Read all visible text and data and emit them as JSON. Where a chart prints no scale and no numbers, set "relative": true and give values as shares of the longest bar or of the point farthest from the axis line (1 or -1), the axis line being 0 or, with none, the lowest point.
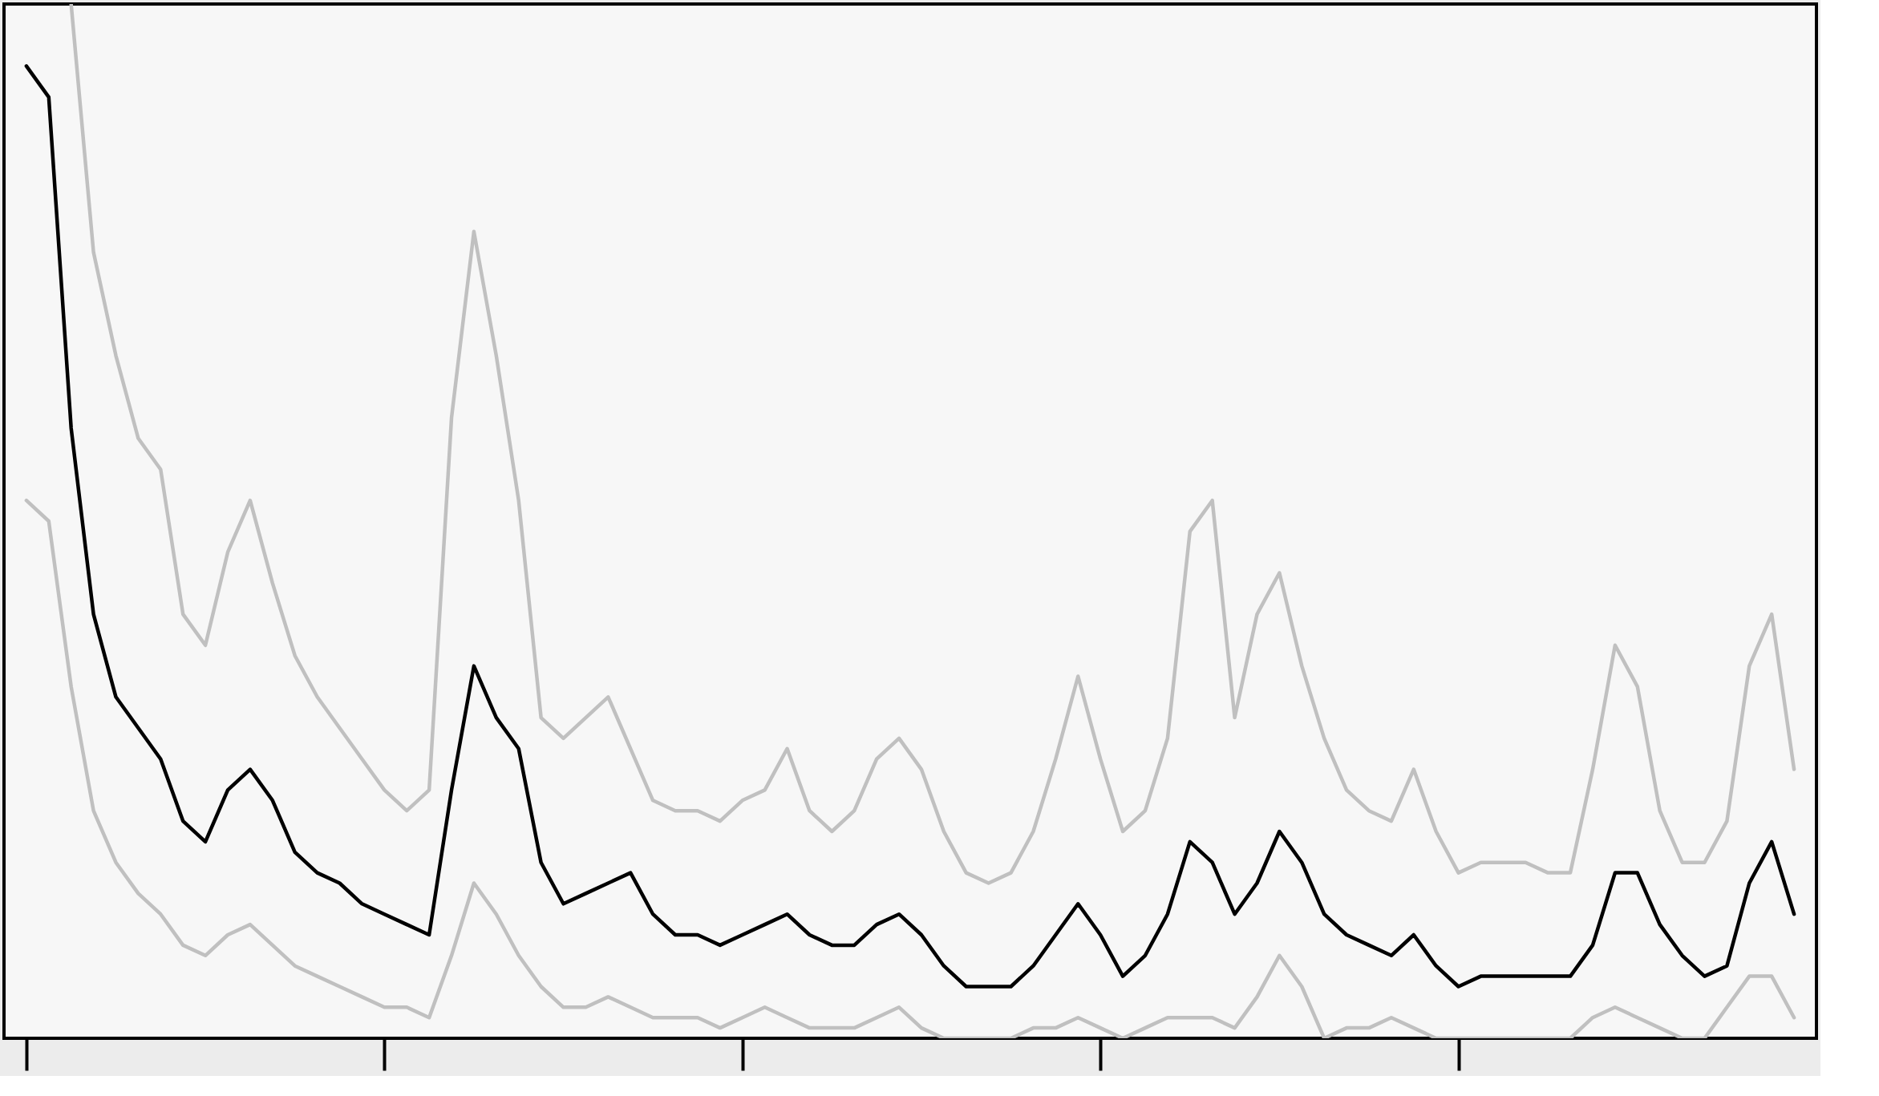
{
  "chart_data": {
    "type": "line",
    "relative": true,
    "grid": false,
    "legend": false,
    "line_style": "solid",
    "marker": "none",
    "categories": [
      null,
      null,
      null,
      null,
      null,
      null,
      null,
      null,
      null,
      null,
      null,
      null,
      null,
      null,
      null,
      null,
      null,
      null,
      null,
      null,
      null,
      null,
      null,
      null,
      null,
      null,
      null,
      null,
      null,
      null,
      null,
      null,
      null,
      null,
      null,
      null,
      null,
      null,
      null,
      null,
      null,
      null,
      null,
      null,
      null,
      null,
      null,
      null,
      null,
      null,
      null,
      null,
      null,
      null,
      null,
      null,
      null,
      null,
      null,
      null,
      null,
      null,
      null,
      null,
      null,
      null,
      null,
      null,
      null,
      null,
      null,
      null,
      null,
      null,
      null,
      null,
      null,
      null,
      null,
      null
    ],
    "series": [
      {
        "color": "#c0c0c0",
        "values": [
          null,
          null,
          1.0,
          0.76,
          0.66,
          0.58,
          0.55,
          0.41,
          0.38,
          0.47,
          0.52,
          0.44,
          0.37,
          0.33,
          0.3,
          0.27,
          0.24,
          0.22,
          0.24,
          0.6,
          0.78,
          0.66,
          0.52,
          0.31,
          0.29,
          0.31,
          0.33,
          0.28,
          0.23,
          0.22,
          0.22,
          0.21,
          0.23,
          0.24,
          0.28,
          0.22,
          0.2,
          0.22,
          0.27,
          0.29,
          0.26,
          0.2,
          0.16,
          0.15,
          0.16,
          0.2,
          0.27,
          0.35,
          0.27,
          0.2,
          0.22,
          0.29,
          0.49,
          0.52,
          0.31,
          0.41,
          0.45,
          0.36,
          0.29,
          0.24,
          0.22,
          0.21,
          0.26,
          0.2,
          0.16,
          0.17,
          0.17,
          0.17,
          0.16,
          0.16,
          0.26,
          0.38,
          0.34,
          0.22,
          0.17,
          0.17,
          0.21,
          0.36,
          0.41,
          0.26
        ]
      },
      {
        "color": "#c0c0c0",
        "values": [
          0.52,
          0.5,
          0.34,
          0.22,
          0.17,
          0.14,
          0.12,
          0.09,
          0.08,
          0.1,
          0.11,
          0.09,
          0.07,
          0.06,
          0.05,
          0.04,
          0.03,
          0.03,
          0.02,
          0.08,
          0.15,
          0.12,
          0.08,
          0.05,
          0.03,
          0.03,
          0.04,
          0.03,
          0.02,
          0.02,
          0.02,
          0.01,
          0.02,
          0.03,
          0.02,
          0.01,
          0.01,
          0.01,
          0.02,
          0.03,
          0.01,
          0.0,
          0.0,
          0.0,
          0.0,
          0.01,
          0.01,
          0.02,
          0.01,
          0.0,
          0.01,
          0.02,
          0.02,
          0.02,
          0.01,
          0.04,
          0.08,
          0.05,
          0.0,
          0.01,
          0.01,
          0.02,
          0.01,
          0.0,
          0.0,
          0.0,
          0.0,
          0.0,
          0.0,
          0.0,
          0.02,
          0.03,
          0.02,
          0.01,
          0.0,
          0.0,
          0.03,
          0.06,
          0.06,
          0.02
        ]
      },
      {
        "color": "#000000",
        "values": [
          0.94,
          0.91,
          0.59,
          0.41,
          0.33,
          0.3,
          0.27,
          0.21,
          0.19,
          0.24,
          0.26,
          0.23,
          0.18,
          0.16,
          0.15,
          0.13,
          0.12,
          0.11,
          0.1,
          0.24,
          0.36,
          0.31,
          0.28,
          0.17,
          0.13,
          0.14,
          0.15,
          0.16,
          0.12,
          0.1,
          0.1,
          0.09,
          0.1,
          0.11,
          0.12,
          0.1,
          0.09,
          0.09,
          0.11,
          0.12,
          0.1,
          0.07,
          0.05,
          0.05,
          0.05,
          0.07,
          0.1,
          0.13,
          0.1,
          0.06,
          0.08,
          0.12,
          0.19,
          0.17,
          0.12,
          0.15,
          0.2,
          0.17,
          0.12,
          0.1,
          0.09,
          0.08,
          0.1,
          0.07,
          0.05,
          0.06,
          0.06,
          0.06,
          0.06,
          0.06,
          0.09,
          0.16,
          0.16,
          0.11,
          0.08,
          0.06,
          0.07,
          0.15,
          0.19,
          0.12
        ]
      }
    ]
  }
}
